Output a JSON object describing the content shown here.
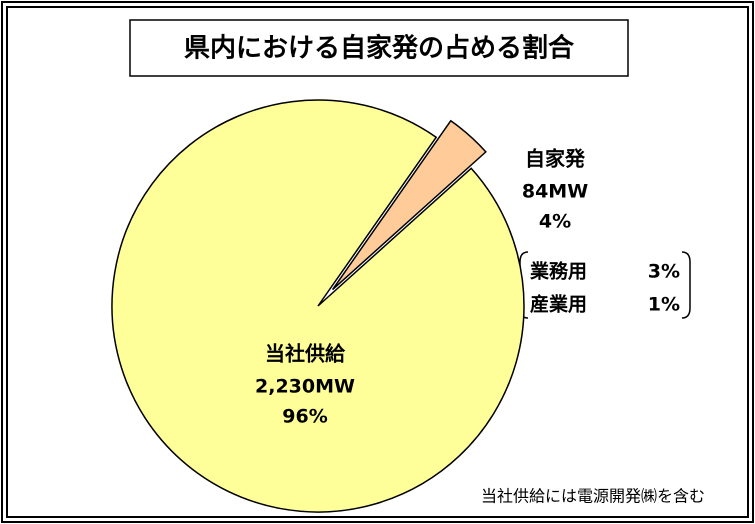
{
  "chart_data": {
    "type": "pie",
    "title": "県内における自家発の占める割合",
    "categories": [
      "当社供給",
      "自家発"
    ],
    "values": [
      2230,
      84
    ],
    "value_labels": [
      "2,230MW",
      "84MW"
    ],
    "shares": [
      {
        "value": 96,
        "label": "96%"
      },
      {
        "value": 4,
        "label": "4%"
      }
    ],
    "colors": [
      "#ffff99",
      "#ffcc99"
    ],
    "breakdown": [
      {
        "name": "業務用",
        "value": 3,
        "label": "3%"
      },
      {
        "name": "産業用",
        "value": 1,
        "label": "1%"
      }
    ],
    "note": "当社供給には電源開発㈱を含む"
  }
}
